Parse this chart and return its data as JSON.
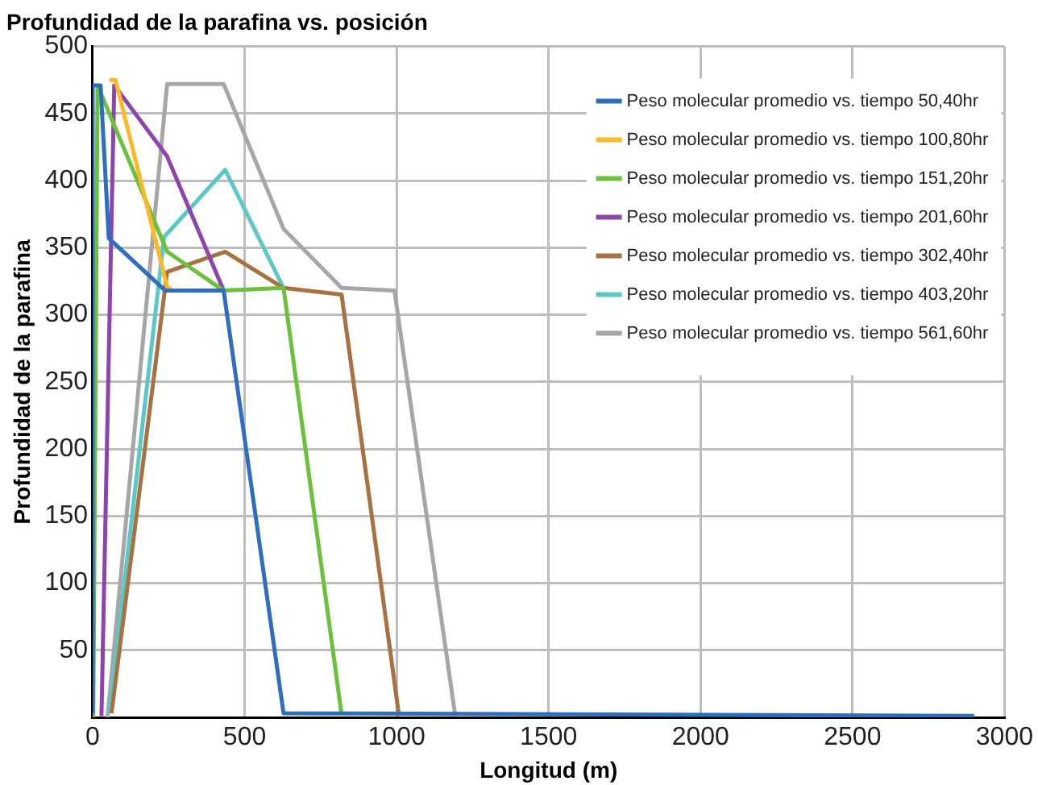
{
  "chart_data": {
    "type": "line",
    "title": "Profundidad de la parafina vs. posición",
    "xlabel": "Longitud (m)",
    "ylabel": "Profundidad de la parafina",
    "xlim": [
      0,
      3000
    ],
    "xticks": [
      0,
      500,
      1000,
      1500,
      2000,
      2500,
      3000
    ],
    "ylim": [
      0,
      500
    ],
    "yticks": [
      50,
      100,
      150,
      200,
      250,
      300,
      350,
      400,
      450,
      500
    ],
    "grid": true,
    "legend": "top right",
    "marker": "none",
    "line_style": "solid",
    "series": [
      {
        "name": "Peso molecular promedio vs. tiempo 50,40hr",
        "color": "#2e6ebf",
        "x": [
          0,
          0,
          26,
          53,
          239,
          431,
          628,
          2900
        ],
        "values": [
          3,
          471,
          471,
          357,
          318,
          318,
          3,
          1
        ]
      },
      {
        "name": "Peso molecular promedio vs. tiempo 100,80hr",
        "color": "#fdb827",
        "x": [
          55,
          75,
          245,
          262
        ],
        "values": [
          475,
          475,
          321,
          318
        ]
      },
      {
        "name": "Peso molecular promedio vs. tiempo 151,20hr",
        "color": "#6cc13a",
        "x": [
          2,
          16,
          245,
          431,
          628,
          819
        ],
        "values": [
          0,
          471,
          347,
          318,
          320,
          2
        ]
      },
      {
        "name": "Peso molecular promedio vs. tiempo 201,60hr",
        "color": "#8e44ad",
        "x": [
          29,
          71,
          245,
          431
        ],
        "values": [
          1,
          471,
          418,
          318
        ]
      },
      {
        "name": "Peso molecular promedio vs. tiempo 302,40hr",
        "color": "#a8713f",
        "x": [
          62,
          245,
          436,
          628,
          819,
          1008
        ],
        "values": [
          3,
          332,
          347,
          320,
          315,
          1
        ]
      },
      {
        "name": "Peso molecular promedio vs. tiempo 403,20hr",
        "color": "#5bc8c8",
        "x": [
          55,
          235,
          436,
          628
        ],
        "values": [
          3,
          358,
          408,
          320
        ]
      },
      {
        "name": "Peso molecular promedio vs. tiempo 561,60hr",
        "color": "#a6a6a6",
        "x": [
          49,
          245,
          431,
          628,
          819,
          993,
          1193
        ],
        "values": [
          0,
          472,
          472,
          364,
          320,
          318,
          1
        ]
      }
    ]
  }
}
